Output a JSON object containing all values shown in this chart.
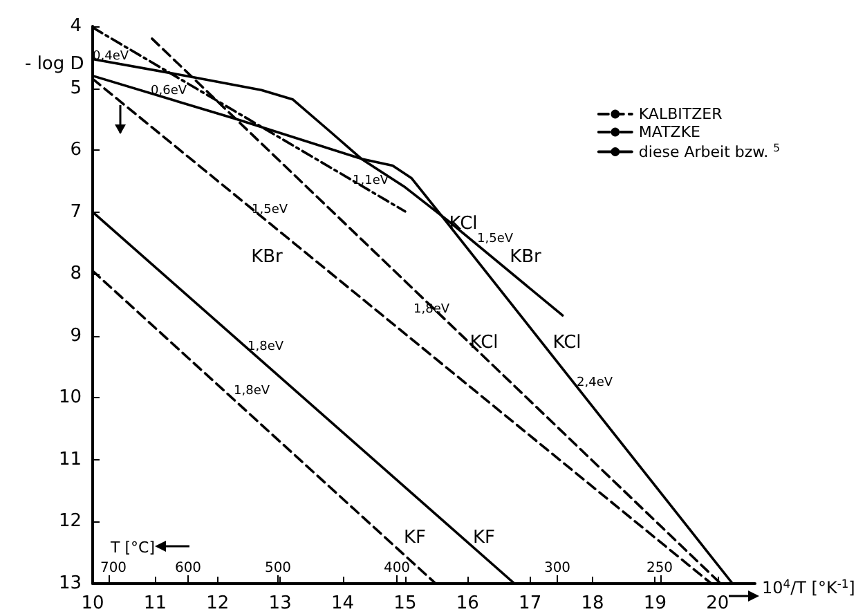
{
  "chart_data": {
    "type": "line",
    "xlabel": "10$^{4}$/T [°K$^{-1}$]",
    "ylabel": "- log D",
    "xlim": [
      10,
      20.6
    ],
    "xticks": [
      10,
      11,
      12,
      13,
      14,
      15,
      16,
      17,
      18,
      19,
      20
    ],
    "ylim": [
      13,
      4
    ],
    "yticks": [
      4,
      5,
      6,
      7,
      8,
      9,
      10,
      11,
      12,
      13
    ],
    "grid": false,
    "legend": "top right",
    "marker": "none",
    "series": [
      {
        "name": "KALBITZER",
        "color": "#000000",
        "line_style": "dashed",
        "x": [
          10,
          15.49
        ],
        "values": [
          7.95,
          13
        ]
      },
      {
        "color": "#000000",
        "line_style": "dashed",
        "x": [
          10,
          19.9
        ],
        "values": [
          4.85,
          13
        ]
      },
      {
        "color": "#000000",
        "line_style": "dashed",
        "x": [
          10.95,
          20.05
        ],
        "values": [
          4.2,
          13
        ]
      },
      {
        "name": "MATZKE",
        "color": "#000000",
        "line_style": "dashdot",
        "x": [
          10,
          15.0
        ],
        "values": [
          4.02,
          6.99
        ]
      },
      {
        "name": "diese Arbeit bzw. $^{5}$",
        "color": "#000000",
        "line_style": "solid",
        "x": [
          10,
          11.6,
          12.7,
          13.2,
          13.8,
          14.3,
          14.8,
          15.1,
          15.6,
          20.24
        ],
        "values": [
          4.53,
          4.82,
          5.03,
          5.18,
          5.7,
          6.14,
          6.25,
          6.45,
          7.08,
          13
        ]
      },
      {
        "color": "#000000",
        "line_style": "solid",
        "x": [
          10,
          12.3,
          14.3,
          15.0,
          15.7,
          17.52
        ],
        "values": [
          4.8,
          5.5,
          6.14,
          6.6,
          7.15,
          8.67
        ]
      },
      {
        "color": "#000000",
        "line_style": "solid",
        "x": [
          10,
          16.75
        ],
        "values": [
          7.0,
          13
        ]
      }
    ],
    "annotations": [
      "0,4eV",
      "0,6eV",
      "1,1eV",
      "1,5eV",
      "KBr",
      "KCl",
      "1,5eV",
      "KBr",
      "1,8eV",
      "KCl",
      "KCl",
      "2,4eV",
      "1,8eV",
      "1,8eV",
      "KF",
      "KF",
      "T [°C]",
      "700",
      "600",
      "500",
      "400",
      "300",
      "250"
    ]
  }
}
